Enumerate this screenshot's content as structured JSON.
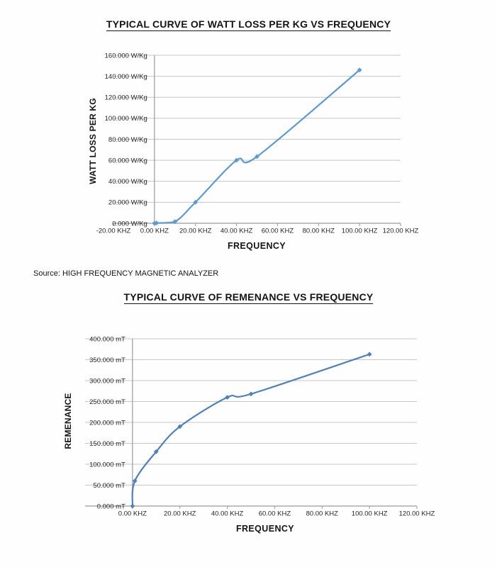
{
  "page": {
    "source_note": "Source: HIGH FREQUENCY MAGNETIC ANALYZER"
  },
  "colors": {
    "grid": "#c6c6c6",
    "axis": "#9a9a9a",
    "tick_text": "#262626",
    "chart1_line": "#5B9BD5",
    "chart2_line": "#4F81BD"
  },
  "chart_data": [
    {
      "type": "line",
      "title": "TYPICAL CURVE OF WATT LOSS PER KG VS FREQUENCY",
      "xlabel": "FREQUENCY",
      "ylabel": "WATT LOSS PER KG",
      "x_unit": "KHZ",
      "y_unit": "W/Kg",
      "xlim": [
        -20,
        120
      ],
      "ylim": [
        0,
        160
      ],
      "axis_cross_x": 0,
      "grid": true,
      "legend": "none",
      "x_ticks": [
        -20,
        0,
        20,
        40,
        60,
        80,
        100,
        120
      ],
      "x_tick_labels": [
        "-20.00 KHZ",
        "0.00 KHZ",
        "20.00 KHZ",
        "40.00 KHZ",
        "60.00 KHZ",
        "80.00 KHZ",
        "100.00 KHZ",
        "120.00 KHZ"
      ],
      "y_ticks": [
        0,
        20,
        40,
        60,
        80,
        100,
        120,
        140,
        160
      ],
      "y_tick_labels": [
        "0.000 W/Kg",
        "20.000 W/Kg",
        "40.000 W/Kg",
        "60.000 W/Kg",
        "80.000 W/Kg",
        "100.000 W/Kg",
        "120.000 W/Kg",
        "140.000 W/Kg",
        "160.000 W/Kg"
      ],
      "series": [
        {
          "x": [
            0,
            1,
            10,
            20,
            40,
            50,
            100
          ],
          "y": [
            0,
            0.2,
            1.5,
            20,
            60,
            63.5,
            146
          ],
          "color": "#5B9BD5",
          "marker": "diamond",
          "smooth": true
        }
      ]
    },
    {
      "type": "line",
      "title": "TYPICAL CURVE OF REMENANCE VS FREQUENCY",
      "xlabel": "FREQUENCY",
      "ylabel": "REMENANCE",
      "x_unit": "KHZ",
      "y_unit": "mT",
      "xlim": [
        -20,
        120
      ],
      "ylim": [
        0,
        400
      ],
      "axis_cross_x": 0,
      "grid": true,
      "legend": "none",
      "x_ticks": [
        0,
        20,
        40,
        60,
        80,
        100,
        120
      ],
      "x_tick_labels": [
        "0.00 KHZ",
        "20.00 KHZ",
        "40.00 KHZ",
        "60.00 KHZ",
        "80.00 KHZ",
        "100.00 KHZ",
        "120.00 KHZ"
      ],
      "y_ticks": [
        0,
        50,
        100,
        150,
        200,
        250,
        300,
        350,
        400
      ],
      "y_tick_labels": [
        "0.000 mT",
        "50.000 mT",
        "100.000 mT",
        "150.000 mT",
        "200.000 mT",
        "250.000 mT",
        "300.000 mT",
        "350.000 mT",
        "400.000 mT"
      ],
      "series": [
        {
          "x": [
            0,
            1,
            10,
            20,
            40,
            50,
            100
          ],
          "y": [
            0,
            60,
            130,
            190,
            260,
            268,
            363
          ],
          "color": "#4F81BD",
          "marker": "diamond",
          "smooth": true
        }
      ]
    }
  ]
}
